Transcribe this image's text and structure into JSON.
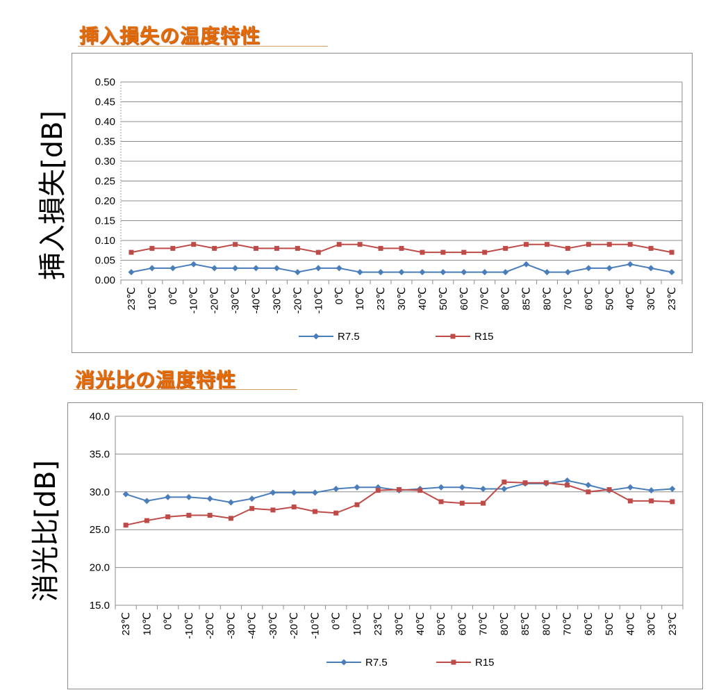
{
  "charts": [
    {
      "title": "挿入損失の温度特性",
      "ylabel": "挿入損失[dB]"
    },
    {
      "title": "消光比の温度特性",
      "ylabel": "消光比[dB]"
    }
  ],
  "colors": {
    "R7.5": "#4a7ebb",
    "R15": "#be4b48",
    "title": "#e36c09"
  },
  "chart_data": [
    {
      "type": "line",
      "title": "挿入損失の温度特性",
      "xlabel": "",
      "ylabel": "挿入損失[dB]",
      "categories": [
        "23℃",
        "10℃",
        "0℃",
        "-10℃",
        "-20℃",
        "-30℃",
        "-40℃",
        "-30℃",
        "-20℃",
        "-10℃",
        "0℃",
        "10℃",
        "23℃",
        "30℃",
        "40℃",
        "50℃",
        "60℃",
        "70℃",
        "80℃",
        "85℃",
        "80℃",
        "70℃",
        "60℃",
        "50℃",
        "40℃",
        "30℃",
        "23℃"
      ],
      "ylim": [
        0,
        0.5
      ],
      "yticks": [
        "0.00",
        "0.05",
        "0.10",
        "0.15",
        "0.20",
        "0.25",
        "0.30",
        "0.35",
        "0.40",
        "0.45",
        "0.50"
      ],
      "grid": true,
      "legend": "bottom",
      "series": [
        {
          "name": "R7.5",
          "marker": "diamond",
          "values": [
            0.02,
            0.03,
            0.03,
            0.04,
            0.03,
            0.03,
            0.03,
            0.03,
            0.02,
            0.03,
            0.03,
            0.02,
            0.02,
            0.02,
            0.02,
            0.02,
            0.02,
            0.02,
            0.02,
            0.04,
            0.02,
            0.02,
            0.03,
            0.03,
            0.04,
            0.03,
            0.02
          ]
        },
        {
          "name": "R15",
          "marker": "square",
          "values": [
            0.07,
            0.08,
            0.08,
            0.09,
            0.08,
            0.09,
            0.08,
            0.08,
            0.08,
            0.07,
            0.09,
            0.09,
            0.08,
            0.08,
            0.07,
            0.07,
            0.07,
            0.07,
            0.08,
            0.09,
            0.09,
            0.08,
            0.09,
            0.09,
            0.09,
            0.08,
            0.07
          ]
        }
      ]
    },
    {
      "type": "line",
      "title": "消光比の温度特性",
      "xlabel": "",
      "ylabel": "消光比[dB]",
      "categories": [
        "23℃",
        "10℃",
        "0℃",
        "-10℃",
        "-20℃",
        "-30℃",
        "-40℃",
        "-30℃",
        "-20℃",
        "-10℃",
        "0℃",
        "10℃",
        "23℃",
        "30℃",
        "40℃",
        "50℃",
        "60℃",
        "70℃",
        "80℃",
        "85℃",
        "80℃",
        "70℃",
        "60℃",
        "50℃",
        "40℃",
        "30℃",
        "23℃"
      ],
      "ylim": [
        15,
        40
      ],
      "yticks": [
        "15.0",
        "20.0",
        "25.0",
        "30.0",
        "35.0",
        "40.0"
      ],
      "grid": true,
      "legend": "bottom",
      "series": [
        {
          "name": "R7.5",
          "marker": "diamond",
          "values": [
            29.7,
            28.8,
            29.3,
            29.3,
            29.1,
            28.6,
            29.1,
            29.9,
            29.9,
            29.9,
            30.4,
            30.6,
            30.6,
            30.2,
            30.4,
            30.6,
            30.6,
            30.4,
            30.4,
            31.1,
            31.1,
            31.5,
            30.9,
            30.2,
            30.6,
            30.2,
            30.4
          ]
        },
        {
          "name": "R15",
          "marker": "square",
          "values": [
            25.6,
            26.2,
            26.7,
            26.9,
            26.9,
            26.5,
            27.8,
            27.6,
            28.0,
            27.4,
            27.2,
            28.3,
            30.2,
            30.3,
            30.2,
            28.7,
            28.5,
            28.5,
            31.3,
            31.2,
            31.2,
            30.9,
            30.0,
            30.3,
            28.8,
            28.8,
            28.7
          ]
        }
      ]
    }
  ]
}
